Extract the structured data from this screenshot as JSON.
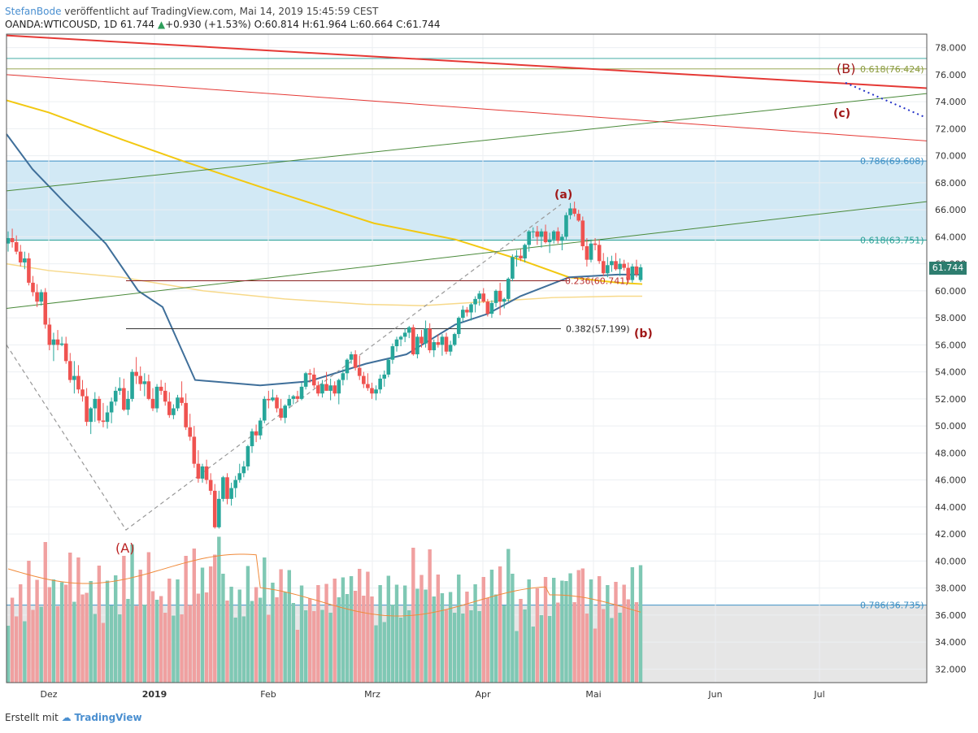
{
  "header": {
    "author": "StefanBode",
    "published": "veröffentlicht auf TradingView.com, Mai 14, 2019 15:45:59 CEST",
    "symbol_line": "OANDA:WTICOUSD, 1D 61.744",
    "change": "+0.930 (+1.53%)",
    "ohlc": "O:60.814 H:61.964 L:60.664 C:61.744"
  },
  "footer": {
    "prefix": "Erstellt mit",
    "brand": "TradingView"
  },
  "colors": {
    "up": "#26a69a",
    "down": "#ef5350",
    "ma_blue": "#3f6f9a",
    "ma_gold": "#f2c811",
    "ma_pale": "#f7d98a",
    "zone": "#bfe0f1"
  },
  "chart_data": {
    "type": "candlestick",
    "y_ticks": [
      "78.000",
      "76.000",
      "74.000",
      "72.000",
      "70.000",
      "68.000",
      "66.000",
      "64.000",
      "62.000",
      "60.000",
      "58.000",
      "56.000",
      "54.000",
      "52.000",
      "50.000",
      "48.000",
      "46.000",
      "44.000",
      "42.000",
      "40.000",
      "38.000",
      "36.000",
      "34.000",
      "32.000"
    ],
    "x_ticks": [
      "Dez",
      "2019",
      "Feb",
      "Mrz",
      "Apr",
      "Mai",
      "Jun",
      "Jul"
    ],
    "ylim": [
      31,
      79
    ],
    "last_price": "61.744",
    "fib_labels": [
      {
        "text": "0.618(76.424)",
        "value": 76.424,
        "color": "#8a9a3c"
      },
      {
        "text": "0.786(69.608)",
        "value": 69.608,
        "color": "#3b8fc4"
      },
      {
        "text": "0.618(63.751)",
        "value": 63.751,
        "color": "#2aa198"
      },
      {
        "text": "0.236(60.741)",
        "value": 60.741,
        "color": "#b33"
      },
      {
        "text": "0.382(57.199)",
        "value": 57.199,
        "color": "#222"
      },
      {
        "text": "0.786(36.735)",
        "value": 36.735,
        "color": "#3b8fc4"
      }
    ],
    "wave_labels": [
      "(A)",
      "(a)",
      "(b)",
      "(B)",
      "(c)"
    ],
    "candles": [
      [
        63.5,
        64.4,
        62.9,
        63.9
      ],
      [
        63.9,
        64.6,
        63.2,
        63.6
      ],
      [
        63.6,
        64.1,
        62.7,
        62.9
      ],
      [
        62.9,
        63.4,
        61.8,
        62.1
      ],
      [
        62.1,
        62.9,
        61.6,
        62.4
      ],
      [
        62.4,
        62.8,
        60.4,
        60.6
      ],
      [
        60.6,
        61.1,
        59.6,
        59.9
      ],
      [
        59.9,
        60.5,
        58.8,
        59.2
      ],
      [
        59.2,
        60.1,
        58.9,
        59.9
      ],
      [
        59.9,
        60.2,
        57.2,
        57.5
      ],
      [
        57.5,
        58.0,
        55.6,
        56.0
      ],
      [
        56.0,
        56.9,
        54.8,
        56.4
      ],
      [
        56.4,
        57.1,
        55.6,
        56.0
      ],
      [
        56.0,
        56.6,
        55.9,
        56.1
      ],
      [
        56.1,
        56.6,
        54.6,
        54.8
      ],
      [
        54.8,
        55.4,
        53.2,
        53.4
      ],
      [
        53.4,
        54.8,
        52.4,
        53.7
      ],
      [
        53.7,
        54.5,
        52.4,
        52.7
      ],
      [
        52.7,
        53.4,
        51.8,
        52.2
      ],
      [
        52.2,
        52.8,
        50.0,
        50.3
      ],
      [
        50.3,
        51.4,
        49.4,
        51.3
      ],
      [
        51.3,
        52.5,
        50.3,
        52.0
      ],
      [
        52.0,
        52.2,
        50.2,
        50.4
      ],
      [
        50.4,
        51.7,
        49.9,
        50.3
      ],
      [
        50.3,
        51.5,
        49.8,
        51.0
      ],
      [
        51.0,
        52.1,
        50.2,
        51.8
      ],
      [
        51.8,
        52.9,
        51.5,
        52.6
      ],
      [
        52.6,
        53.6,
        52.3,
        52.8
      ],
      [
        52.8,
        53.5,
        51.1,
        51.2
      ],
      [
        51.2,
        52.6,
        50.8,
        52.0
      ],
      [
        52.0,
        54.2,
        51.8,
        54.0
      ],
      [
        54.0,
        55.1,
        53.1,
        53.7
      ],
      [
        53.7,
        54.4,
        52.6,
        53.1
      ],
      [
        53.1,
        53.9,
        52.2,
        53.3
      ],
      [
        53.3,
        53.8,
        51.9,
        52.0
      ],
      [
        52.0,
        52.8,
        51.1,
        51.3
      ],
      [
        51.3,
        53.1,
        51.0,
        52.9
      ],
      [
        52.9,
        53.4,
        52.3,
        52.6
      ],
      [
        52.6,
        53.2,
        51.5,
        51.8
      ],
      [
        51.8,
        52.5,
        50.6,
        50.8
      ],
      [
        50.8,
        51.6,
        50.5,
        51.3
      ],
      [
        51.3,
        52.3,
        51.1,
        52.1
      ],
      [
        52.1,
        53.3,
        51.5,
        51.7
      ],
      [
        51.7,
        52.4,
        49.7,
        49.9
      ],
      [
        49.9,
        50.9,
        48.9,
        49.2
      ],
      [
        49.2,
        50.0,
        46.9,
        47.2
      ],
      [
        47.2,
        48.2,
        45.8,
        46.1
      ],
      [
        46.1,
        47.2,
        45.8,
        47.0
      ],
      [
        47.0,
        47.5,
        45.7,
        46.0
      ],
      [
        46.0,
        46.5,
        44.9,
        45.2
      ],
      [
        45.2,
        45.7,
        42.4,
        42.5
      ],
      [
        42.5,
        45.2,
        42.4,
        44.6
      ],
      [
        44.6,
        46.3,
        44.4,
        46.2
      ],
      [
        46.2,
        46.5,
        44.2,
        44.6
      ],
      [
        44.6,
        45.8,
        44.1,
        45.4
      ],
      [
        45.4,
        46.3,
        44.7,
        46.0
      ],
      [
        46.0,
        47.2,
        45.8,
        46.5
      ],
      [
        46.5,
        47.4,
        46.2,
        47.0
      ],
      [
        47.0,
        48.6,
        46.7,
        48.5
      ],
      [
        48.5,
        49.8,
        48.0,
        49.6
      ],
      [
        49.6,
        50.1,
        48.8,
        49.3
      ],
      [
        49.3,
        50.6,
        49.0,
        50.4
      ],
      [
        50.4,
        52.2,
        50.2,
        52.0
      ],
      [
        52.0,
        52.6,
        51.3,
        51.9
      ],
      [
        51.9,
        52.7,
        51.8,
        52.1
      ],
      [
        52.1,
        52.3,
        51.0,
        51.3
      ],
      [
        51.3,
        52.0,
        50.4,
        50.6
      ],
      [
        50.6,
        51.6,
        50.2,
        51.5
      ],
      [
        51.5,
        52.3,
        51.3,
        52.0
      ],
      [
        52.0,
        52.3,
        51.6,
        52.2
      ],
      [
        52.2,
        52.6,
        51.8,
        52.0
      ],
      [
        52.0,
        53.2,
        51.9,
        52.9
      ],
      [
        52.9,
        54.0,
        52.7,
        53.9
      ],
      [
        53.9,
        54.2,
        53.2,
        53.8
      ],
      [
        53.8,
        54.3,
        52.8,
        53.0
      ],
      [
        53.0,
        53.3,
        52.2,
        52.4
      ],
      [
        52.4,
        53.4,
        52.1,
        53.1
      ],
      [
        53.1,
        54.0,
        52.6,
        52.6
      ],
      [
        52.6,
        53.5,
        51.9,
        53.0
      ],
      [
        53.0,
        53.3,
        52.2,
        52.4
      ],
      [
        52.4,
        53.5,
        51.6,
        53.4
      ],
      [
        53.4,
        54.2,
        53.0,
        53.9
      ],
      [
        53.9,
        55.0,
        53.4,
        54.9
      ],
      [
        54.9,
        55.5,
        54.6,
        55.3
      ],
      [
        55.3,
        55.6,
        54.1,
        54.3
      ],
      [
        54.3,
        55.2,
        53.4,
        53.7
      ],
      [
        53.7,
        54.0,
        52.8,
        53.1
      ],
      [
        53.1,
        53.9,
        52.6,
        52.8
      ],
      [
        52.8,
        53.2,
        52.0,
        52.4
      ],
      [
        52.4,
        53.0,
        51.9,
        52.7
      ],
      [
        52.7,
        53.8,
        52.4,
        53.5
      ],
      [
        53.5,
        54.1,
        52.9,
        53.8
      ],
      [
        53.8,
        55.0,
        53.6,
        54.9
      ],
      [
        54.9,
        56.1,
        54.6,
        55.9
      ],
      [
        55.9,
        56.6,
        55.5,
        56.4
      ],
      [
        56.4,
        56.7,
        55.9,
        56.6
      ],
      [
        56.6,
        57.2,
        56.2,
        56.9
      ],
      [
        56.9,
        57.4,
        56.5,
        57.3
      ],
      [
        57.3,
        57.5,
        55.2,
        55.3
      ],
      [
        55.3,
        56.8,
        55.0,
        56.6
      ],
      [
        56.6,
        57.1,
        55.8,
        56.1
      ],
      [
        56.1,
        57.8,
        55.8,
        57.2
      ],
      [
        57.2,
        57.6,
        55.4,
        55.6
      ],
      [
        55.6,
        56.4,
        55.1,
        56.2
      ],
      [
        56.2,
        56.8,
        55.8,
        56.0
      ],
      [
        56.0,
        56.8,
        55.2,
        56.6
      ],
      [
        56.6,
        56.9,
        55.3,
        55.5
      ],
      [
        55.5,
        56.3,
        55.2,
        56.0
      ],
      [
        56.0,
        56.9,
        55.9,
        56.8
      ],
      [
        56.8,
        58.1,
        56.5,
        58.0
      ],
      [
        58.0,
        58.9,
        57.7,
        58.6
      ],
      [
        58.6,
        58.8,
        58.1,
        58.4
      ],
      [
        58.4,
        59.1,
        57.8,
        59.0
      ],
      [
        59.0,
        59.6,
        58.4,
        59.4
      ],
      [
        59.4,
        60.0,
        58.9,
        59.8
      ],
      [
        59.8,
        60.2,
        59.1,
        59.2
      ],
      [
        59.2,
        59.4,
        58.1,
        58.3
      ],
      [
        58.3,
        59.3,
        58.0,
        59.1
      ],
      [
        59.1,
        60.1,
        58.8,
        60.0
      ],
      [
        60.0,
        60.6,
        58.2,
        59.2
      ],
      [
        59.2,
        59.5,
        58.7,
        59.4
      ],
      [
        59.4,
        61.0,
        59.2,
        60.9
      ],
      [
        60.9,
        62.7,
        60.7,
        62.5
      ],
      [
        62.5,
        63.0,
        61.8,
        62.6
      ],
      [
        62.6,
        63.1,
        62.2,
        62.4
      ],
      [
        62.4,
        63.5,
        62.1,
        63.4
      ],
      [
        63.4,
        64.5,
        62.9,
        64.4
      ],
      [
        64.4,
        64.7,
        63.9,
        64.4
      ],
      [
        64.4,
        64.8,
        63.4,
        64.0
      ],
      [
        64.0,
        64.6,
        63.2,
        64.4
      ],
      [
        64.4,
        64.9,
        63.5,
        63.6
      ],
      [
        63.6,
        64.3,
        62.8,
        63.8
      ],
      [
        63.8,
        64.5,
        63.5,
        64.4
      ],
      [
        64.4,
        64.7,
        63.5,
        63.7
      ],
      [
        63.7,
        64.2,
        63.0,
        64.0
      ],
      [
        64.0,
        65.8,
        63.8,
        65.6
      ],
      [
        65.6,
        66.5,
        65.3,
        66.1
      ],
      [
        66.1,
        66.6,
        65.5,
        65.7
      ],
      [
        65.7,
        66.0,
        65.1,
        65.2
      ],
      [
        65.2,
        65.5,
        63.0,
        63.3
      ],
      [
        63.3,
        63.9,
        61.8,
        62.3
      ],
      [
        62.3,
        63.8,
        62.1,
        63.5
      ],
      [
        63.5,
        63.9,
        63.0,
        63.4
      ],
      [
        63.4,
        63.8,
        62.0,
        62.2
      ],
      [
        62.2,
        62.8,
        61.1,
        61.3
      ],
      [
        61.3,
        62.5,
        61.0,
        61.9
      ],
      [
        61.9,
        62.6,
        61.4,
        62.2
      ],
      [
        62.2,
        62.8,
        61.5,
        61.6
      ],
      [
        61.6,
        62.4,
        61.1,
        62.0
      ],
      [
        62.0,
        62.3,
        61.5,
        61.7
      ],
      [
        61.7,
        62.1,
        60.6,
        60.8
      ],
      [
        60.8,
        62.0,
        60.6,
        61.8
      ],
      [
        61.8,
        62.3,
        61.0,
        61.2
      ],
      [
        60.8,
        61.96,
        60.66,
        61.74
      ]
    ],
    "volume_note": "volume pane rendered as bars in lower area"
  }
}
